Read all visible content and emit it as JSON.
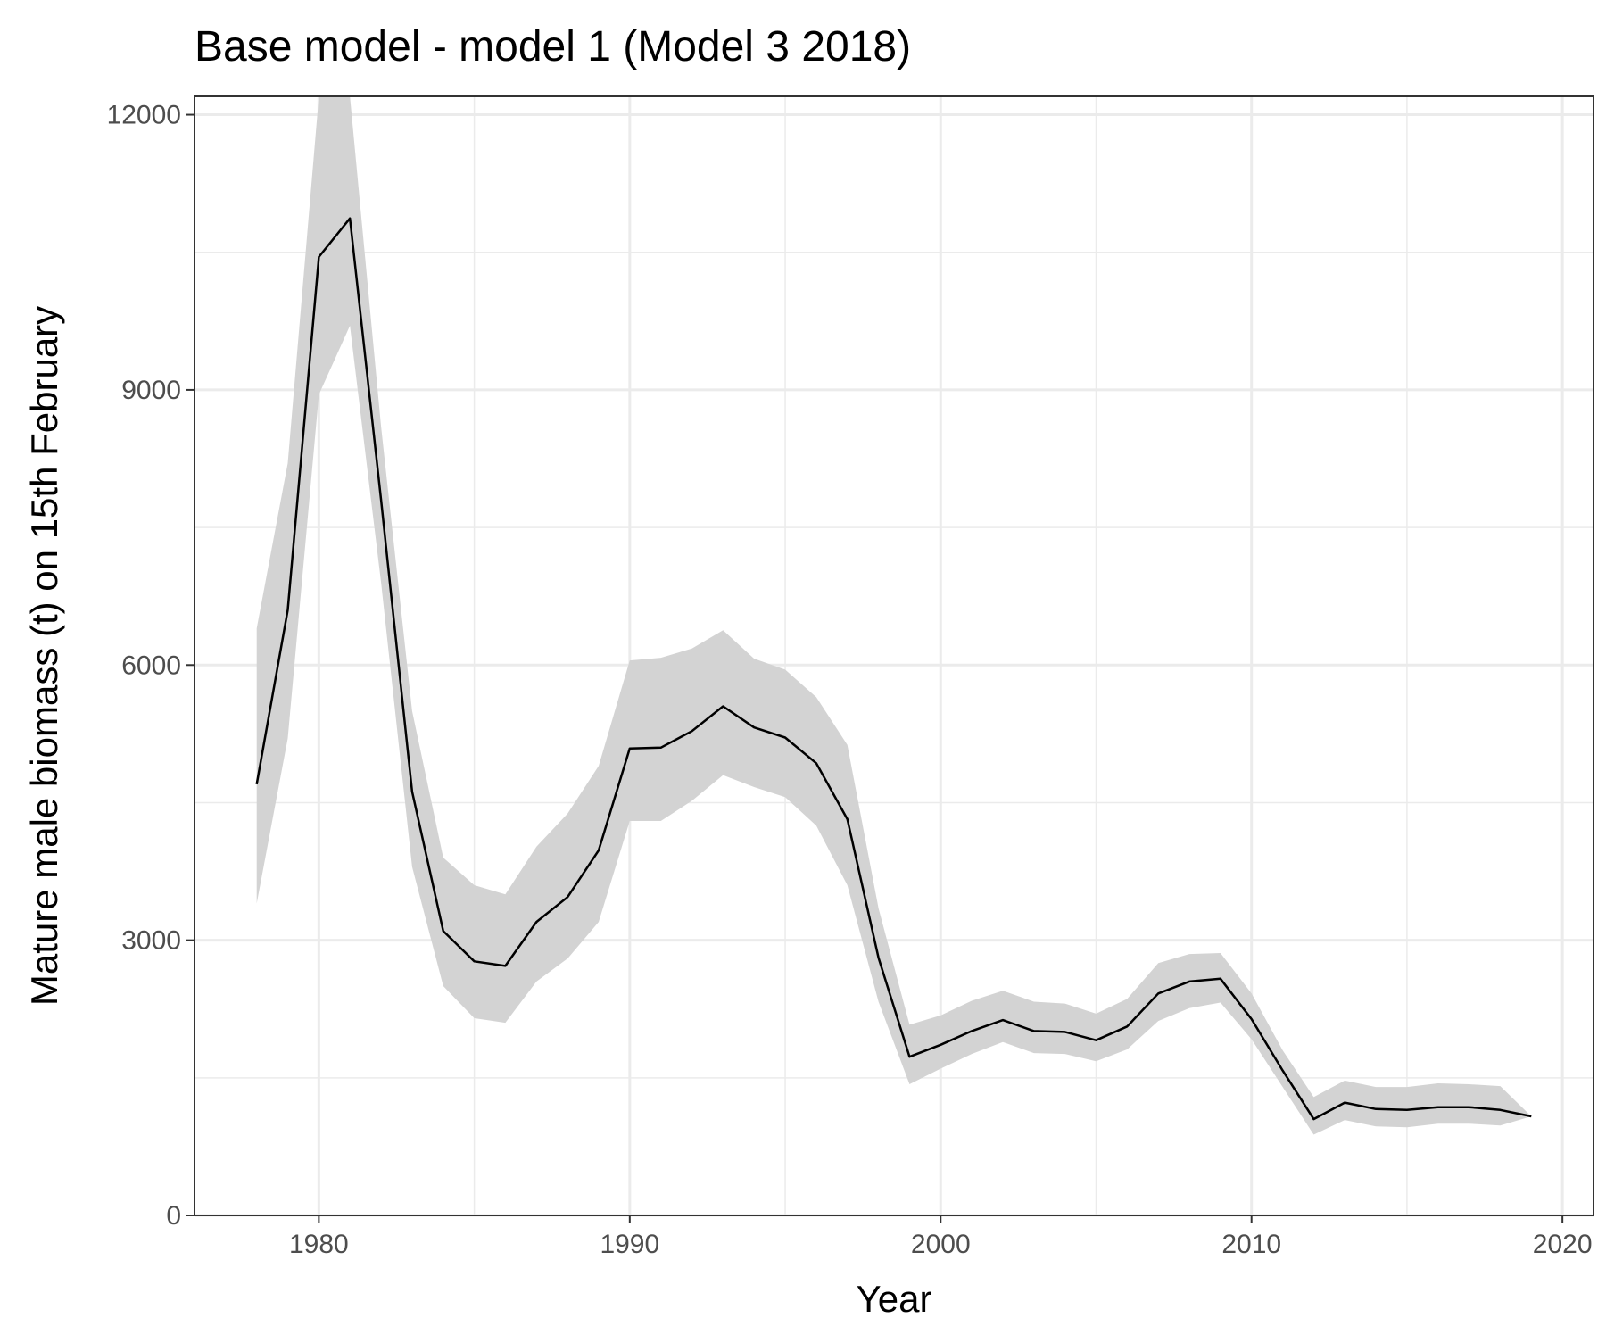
{
  "chart_data": {
    "type": "line",
    "title": "Base model - model 1 (Model 3 2018)",
    "xlabel": "Year",
    "ylabel": "Mature male biomass (t) on 15th February",
    "xlim": [
      1976,
      2021
    ],
    "ylim": [
      0,
      12200
    ],
    "x_ticks": [
      1980,
      1990,
      2000,
      2010,
      2020
    ],
    "y_ticks": [
      0,
      3000,
      6000,
      9000,
      12000
    ],
    "grid": true,
    "legend": "none",
    "colors": {
      "line": "#000000",
      "band": "#d3d3d3",
      "panel_border": "#333333"
    },
    "series": [
      {
        "x": [
          1978,
          1979,
          1980,
          1981,
          1982,
          1983,
          1984,
          1985,
          1986,
          1987,
          1988,
          1989,
          1990,
          1991,
          1992,
          1993,
          1994,
          1995,
          1996,
          1997,
          1998,
          1999,
          2000,
          2001,
          2002,
          2003,
          2004,
          2005,
          2006,
          2007,
          2008,
          2009,
          2010,
          2011,
          2012,
          2013,
          2014,
          2015,
          2016,
          2017,
          2018,
          2019
        ],
        "y": [
          4700,
          6600,
          10450,
          10870,
          7800,
          4620,
          3100,
          2770,
          2720,
          3200,
          3470,
          3980,
          5090,
          5100,
          5280,
          5550,
          5320,
          5210,
          4930,
          4320,
          2810,
          1730,
          1860,
          2010,
          2130,
          2010,
          2000,
          1910,
          2060,
          2420,
          2550,
          2580,
          2140,
          1580,
          1050,
          1230,
          1160,
          1150,
          1180,
          1180,
          1150,
          1080
        ],
        "lower": [
          3400,
          5200,
          8950,
          9700,
          6900,
          3800,
          2500,
          2150,
          2100,
          2550,
          2800,
          3200,
          4300,
          4300,
          4520,
          4800,
          4670,
          4560,
          4250,
          3600,
          2330,
          1430,
          1600,
          1760,
          1890,
          1770,
          1760,
          1680,
          1810,
          2120,
          2260,
          2320,
          1920,
          1400,
          880,
          1040,
          970,
          960,
          1000,
          1000,
          980,
          1080
        ],
        "upper": [
          6400,
          8200,
          12200,
          12200,
          8600,
          5500,
          3900,
          3600,
          3500,
          4020,
          4380,
          4900,
          6050,
          6080,
          6180,
          6380,
          6070,
          5950,
          5650,
          5130,
          3350,
          2080,
          2180,
          2340,
          2450,
          2330,
          2310,
          2200,
          2360,
          2750,
          2850,
          2860,
          2420,
          1800,
          1290,
          1470,
          1400,
          1400,
          1440,
          1430,
          1410,
          1080
        ]
      }
    ]
  }
}
